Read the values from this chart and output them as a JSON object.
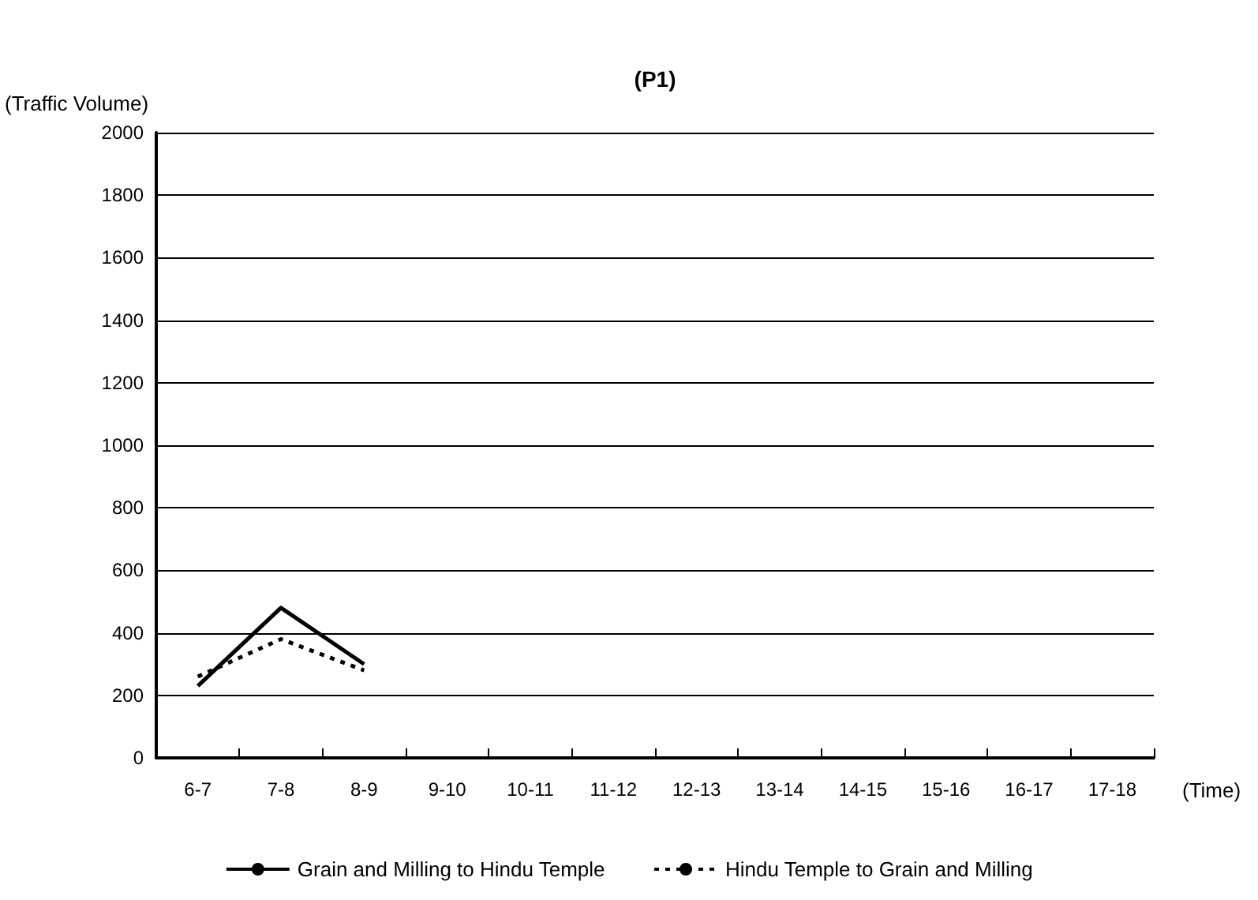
{
  "chart_data": {
    "type": "line",
    "title": "(P1)",
    "ylabel": "(Traffic Volume)",
    "xlabel": "(Time)",
    "categories": [
      "6-7",
      "7-8",
      "8-9",
      "9-10",
      "10-11",
      "11-12",
      "12-13",
      "13-14",
      "14-15",
      "15-16",
      "16-17",
      "17-18"
    ],
    "series": [
      {
        "name": "Grain and Milling to Hindu Temple",
        "color": "#000000",
        "line_style": "solid",
        "values": [
          230,
          480,
          300,
          null,
          null,
          null,
          null,
          null,
          null,
          null,
          null,
          null
        ]
      },
      {
        "name": "Hindu Temple to Grain and Milling",
        "color": "#000000",
        "line_style": "dotted",
        "values": [
          260,
          380,
          280,
          null,
          null,
          null,
          null,
          null,
          null,
          null,
          null,
          null
        ]
      }
    ],
    "ylim": [
      0,
      2000
    ],
    "yticks": [
      0,
      200,
      400,
      600,
      800,
      1000,
      1200,
      1400,
      1600,
      1800,
      2000
    ],
    "grid": "y",
    "legend": "bottom",
    "marker": "none"
  }
}
